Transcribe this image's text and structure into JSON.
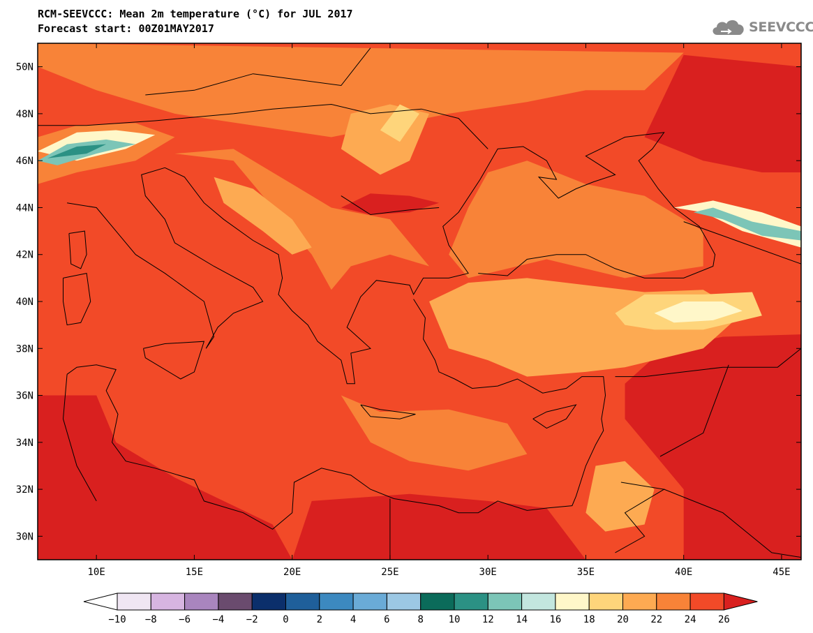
{
  "header": {
    "title_line1": "RCM-SEEVCCC: Mean 2m temperature (°C) for JUL 2017",
    "title_line2": "Forecast start: 00Z01MAY2017"
  },
  "logo": {
    "text": "SEEVCCC",
    "icon": "cloud-logo-icon"
  },
  "map": {
    "variable": "Mean 2m temperature",
    "units": "°C",
    "extent": {
      "lon_min": 7,
      "lon_max": 46,
      "lat_min": 29,
      "lat_max": 51
    },
    "lat_ticks": [
      {
        "lat": 50,
        "label": "50N"
      },
      {
        "lat": 48,
        "label": "48N"
      },
      {
        "lat": 46,
        "label": "46N"
      },
      {
        "lat": 44,
        "label": "44N"
      },
      {
        "lat": 42,
        "label": "42N"
      },
      {
        "lat": 40,
        "label": "40N"
      },
      {
        "lat": 38,
        "label": "38N"
      },
      {
        "lat": 36,
        "label": "36N"
      },
      {
        "lat": 34,
        "label": "34N"
      },
      {
        "lat": 32,
        "label": "32N"
      },
      {
        "lat": 30,
        "label": "30N"
      }
    ],
    "lon_ticks": [
      {
        "lon": 10,
        "label": "10E"
      },
      {
        "lon": 15,
        "label": "15E"
      },
      {
        "lon": 20,
        "label": "20E"
      },
      {
        "lon": 25,
        "label": "25E"
      },
      {
        "lon": 30,
        "label": "30E"
      },
      {
        "lon": 35,
        "label": "35E"
      },
      {
        "lon": 40,
        "label": "40E"
      },
      {
        "lon": 45,
        "label": "45E"
      }
    ]
  },
  "colorbar": {
    "labels": [
      "−10",
      "−8",
      "−6",
      "−4",
      "−2",
      "0",
      "2",
      "4",
      "6",
      "8",
      "10",
      "12",
      "14",
      "16",
      "18",
      "20",
      "22",
      "24",
      "26"
    ],
    "under_color": "#ffffff",
    "colors": [
      "#f0e6f3",
      "#d7b5e1",
      "#a985be",
      "#6a4b6e",
      "#0b2f6b",
      "#1f5f9a",
      "#3c89c0",
      "#6aabd7",
      "#9cc8e4",
      "#0b6b5a",
      "#2b9184",
      "#7cc5b7",
      "#c3e6df",
      "#fff7c9",
      "#fed57b",
      "#fdaa52",
      "#f88338",
      "#f24a28"
    ],
    "over_color": "#d9201f"
  },
  "field_colors": {
    "c16": "#fff7c9",
    "c18": "#fed57b",
    "c20": "#fdaa52",
    "c22": "#f88338",
    "c24": "#f24a28",
    "c26": "#d9201f",
    "c14": "#c3e6df",
    "c12": "#7cc5b7",
    "c10": "#2b9184",
    "c8": "#0b6b5a"
  }
}
